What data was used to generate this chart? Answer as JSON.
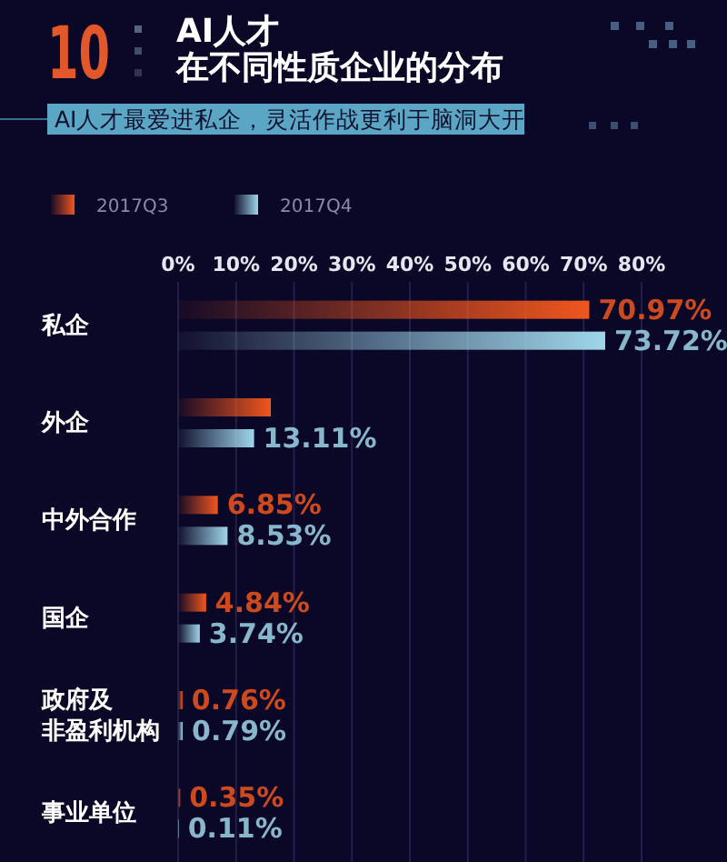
{
  "chart_data": {
    "type": "bar",
    "orientation": "horizontal",
    "title": "AI人才在不同性质企业的分布",
    "subtitle": "AI人才最爱进私企，灵活作战更利于脑洞大开",
    "annotations": [
      "10"
    ],
    "categories": [
      "私企",
      "外企",
      "中外合作",
      "国企",
      "政府及非盈利机构",
      "事业单位"
    ],
    "series": [
      {
        "name": "2017Q3",
        "color": "#f0561e",
        "values": [
          70.97,
          16,
          6.85,
          4.84,
          0.76,
          0.35
        ],
        "value_labels": [
          "70.97%",
          null,
          "6.85%",
          "4.84%",
          "0.76%",
          "0.35%"
        ]
      },
      {
        "name": "2017Q4",
        "color": "#9fd6ea",
        "values": [
          73.72,
          13.11,
          8.53,
          3.74,
          0.79,
          0.11
        ],
        "value_labels": [
          "73.72%",
          "13.11%",
          "8.53%",
          "3.74%",
          "0.79%",
          "0.11%"
        ]
      }
    ],
    "xlim": [
      0,
      80
    ],
    "xticks": [
      {
        "value": 0,
        "label": "0%"
      },
      {
        "value": 10,
        "label": "10%"
      },
      {
        "value": 20,
        "label": "20%"
      },
      {
        "value": 30,
        "label": "30%"
      },
      {
        "value": 40,
        "label": "40%"
      },
      {
        "value": 50,
        "label": "50%"
      },
      {
        "value": 60,
        "label": "60%"
      },
      {
        "value": 70,
        "label": "70%"
      },
      {
        "value": 80,
        "label": "80%"
      }
    ],
    "grid": "x",
    "legend": "top left"
  }
}
